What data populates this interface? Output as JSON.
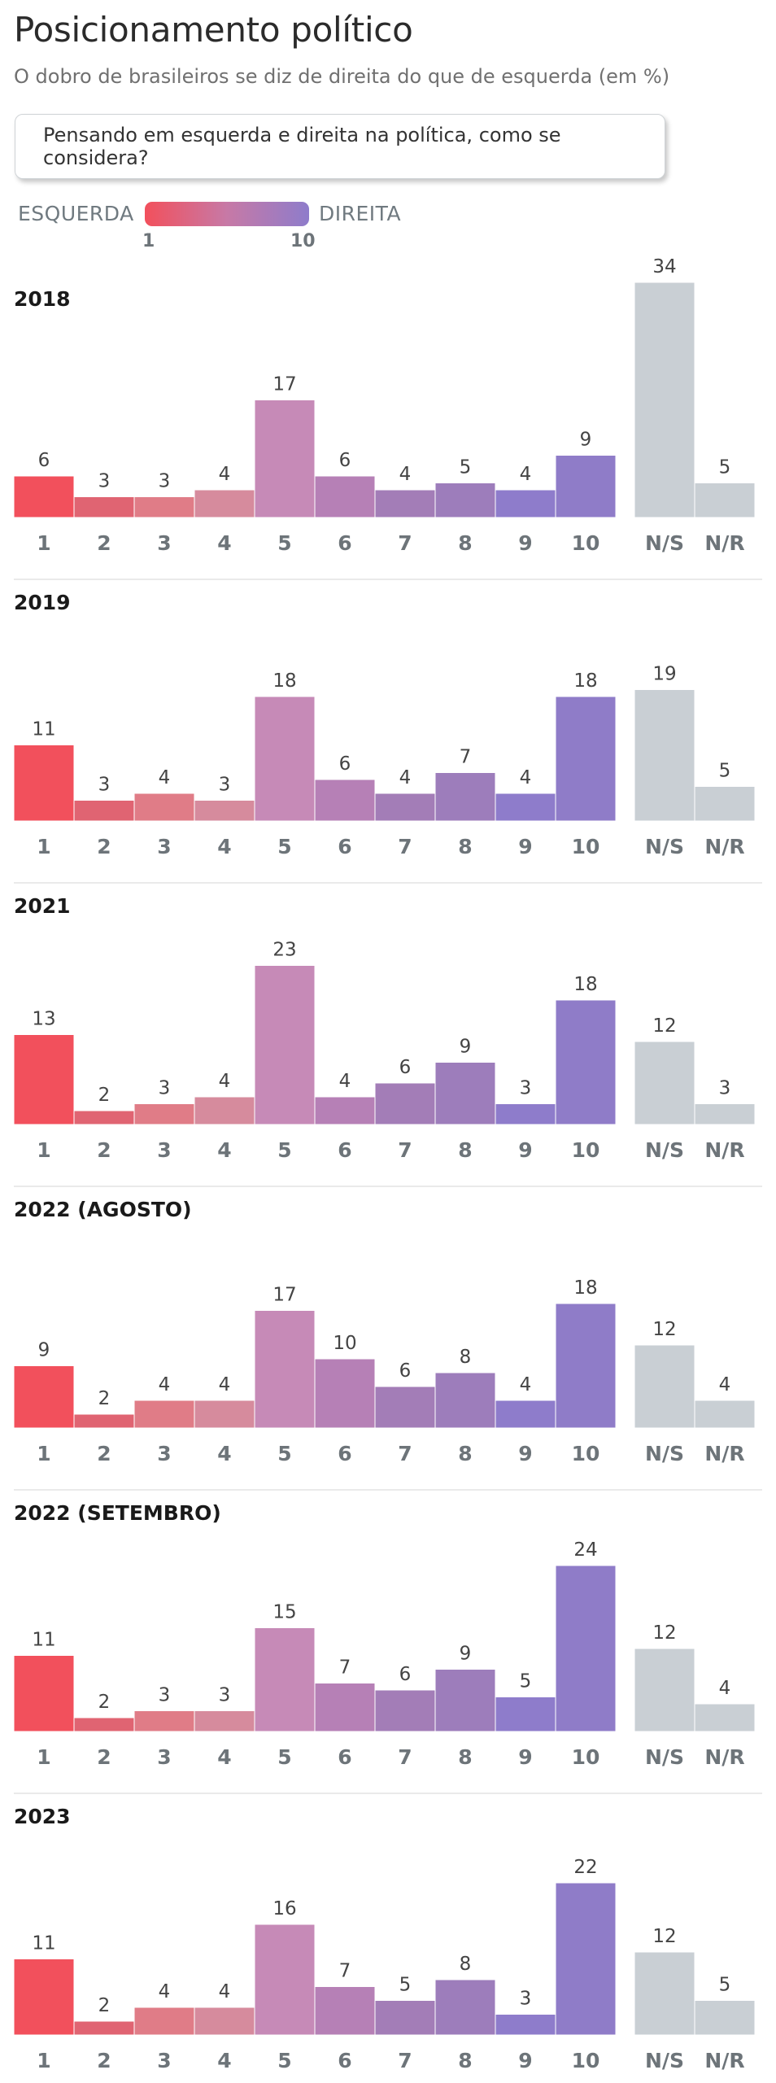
{
  "title": "Posicionamento político",
  "subtitle": "O dobro de brasileiros se diz de direita do que de esquerda (em %)",
  "question": "Pensando em esquerda e direita na política, como se considera?",
  "legend": {
    "left_label": "ESQUERDA",
    "right_label": "DIREITA",
    "min_label": "1",
    "max_label": "10",
    "gradient_start": "#f2505c",
    "gradient_end": "#8e7ccb"
  },
  "colors": {
    "scale": [
      "#f2505c",
      "#e06472",
      "#e07c87",
      "#d68b9d",
      "#c68ab7",
      "#b680b6",
      "#a37db7",
      "#9d7dbb",
      "#8e7ccb",
      "#8f7cc8"
    ],
    "neutral": [
      "#c9cfd4",
      "#c9cfd4"
    ],
    "divider": "#e3e3e3"
  },
  "chart_data": [
    {
      "type": "bar",
      "title": "2018",
      "categories": [
        "1",
        "2",
        "3",
        "4",
        "5",
        "6",
        "7",
        "8",
        "9",
        "10",
        "N/S",
        "N/R"
      ],
      "values": [
        6,
        3,
        3,
        4,
        17,
        6,
        4,
        5,
        4,
        9,
        34,
        5
      ]
    },
    {
      "type": "bar",
      "title": "2019",
      "categories": [
        "1",
        "2",
        "3",
        "4",
        "5",
        "6",
        "7",
        "8",
        "9",
        "10",
        "N/S",
        "N/R"
      ],
      "values": [
        11,
        3,
        4,
        3,
        18,
        6,
        4,
        7,
        4,
        18,
        19,
        5
      ]
    },
    {
      "type": "bar",
      "title": "2021",
      "categories": [
        "1",
        "2",
        "3",
        "4",
        "5",
        "6",
        "7",
        "8",
        "9",
        "10",
        "N/S",
        "N/R"
      ],
      "values": [
        13,
        2,
        3,
        4,
        23,
        4,
        6,
        9,
        3,
        18,
        12,
        3
      ]
    },
    {
      "type": "bar",
      "title": "2022 (AGOSTO)",
      "categories": [
        "1",
        "2",
        "3",
        "4",
        "5",
        "6",
        "7",
        "8",
        "9",
        "10",
        "N/S",
        "N/R"
      ],
      "values": [
        9,
        2,
        4,
        4,
        17,
        10,
        6,
        8,
        4,
        18,
        12,
        4
      ]
    },
    {
      "type": "bar",
      "title": "2022 (SETEMBRO)",
      "categories": [
        "1",
        "2",
        "3",
        "4",
        "5",
        "6",
        "7",
        "8",
        "9",
        "10",
        "N/S",
        "N/R"
      ],
      "values": [
        11,
        2,
        3,
        3,
        15,
        7,
        6,
        9,
        5,
        24,
        12,
        4
      ]
    },
    {
      "type": "bar",
      "title": "2023",
      "categories": [
        "1",
        "2",
        "3",
        "4",
        "5",
        "6",
        "7",
        "8",
        "9",
        "10",
        "N/S",
        "N/R"
      ],
      "values": [
        11,
        2,
        4,
        4,
        16,
        7,
        5,
        8,
        3,
        22,
        12,
        5
      ]
    }
  ]
}
